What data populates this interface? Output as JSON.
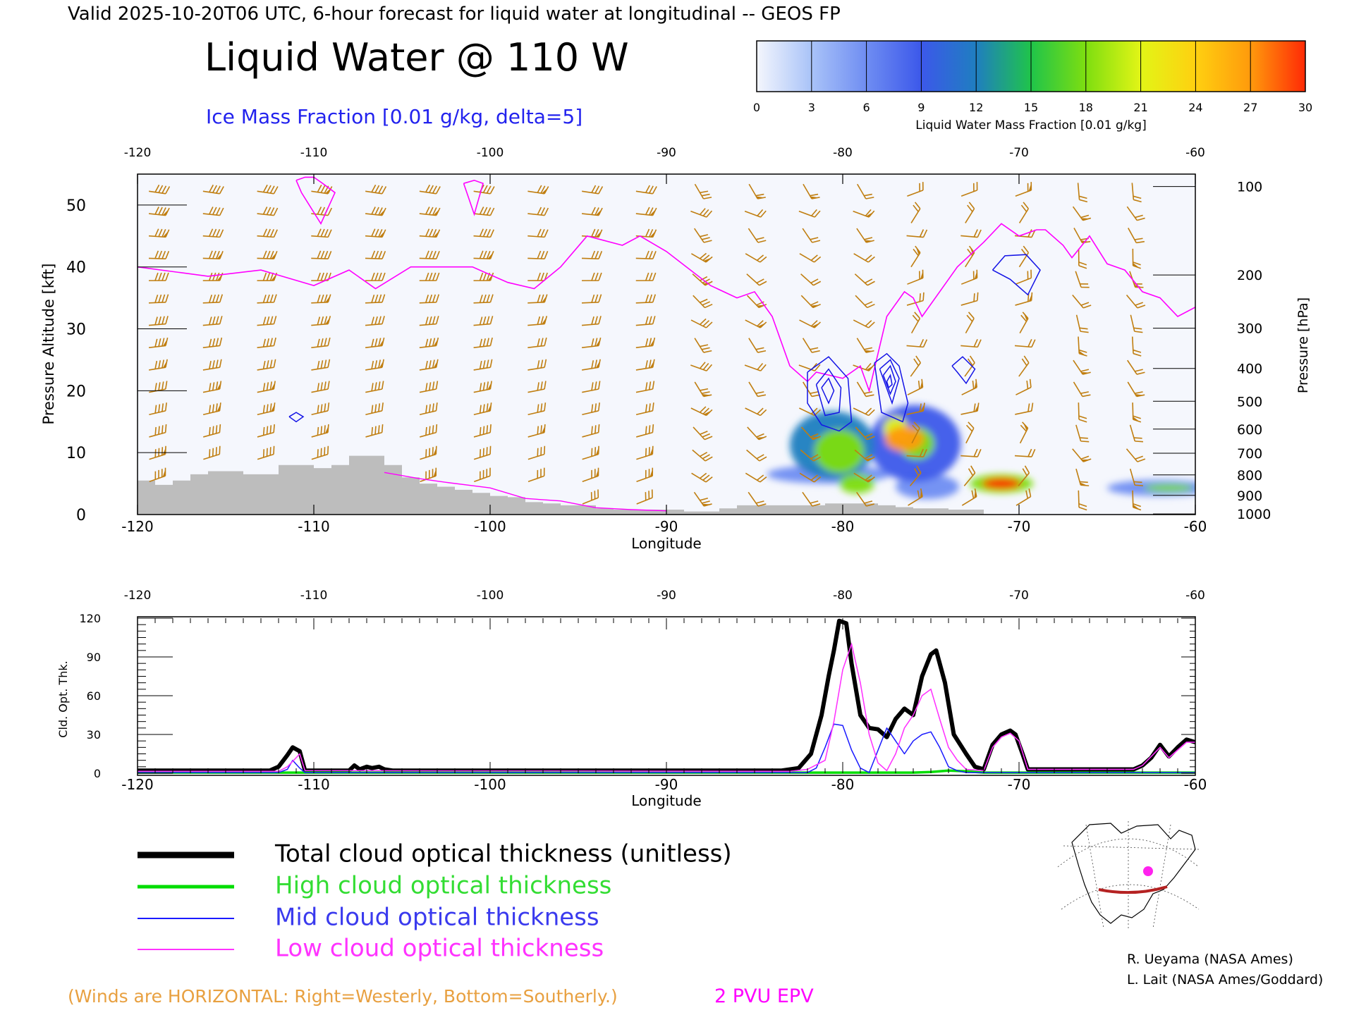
{
  "header": {
    "valid_line": "Valid 2025-10-20T06 UTC, 6-hour forecast for liquid water at longitudinal -- GEOS FP",
    "title": "Liquid Water @ 110 W",
    "ice_label": "Ice Mass Fraction [0.01 g/kg, delta=5]"
  },
  "colorbar": {
    "ticks": [
      "0",
      "3",
      "6",
      "9",
      "12",
      "15",
      "18",
      "21",
      "24",
      "27",
      "30"
    ],
    "label": "Liquid Water Mass Fraction [0.01 g/kg]",
    "colors": [
      "#f4f6fd",
      "#a9c3f8",
      "#6f8df2",
      "#3c58ea",
      "#1f7ec0",
      "#1fc44a",
      "#7ede10",
      "#e2f516",
      "#ffd010",
      "#ff9a0c",
      "#ff2a06"
    ]
  },
  "colors": {
    "wind_barb": "#c07e10",
    "epv": "#ff00ff",
    "ice": "#1414e6",
    "terrain": "#bdbdbd",
    "total": "#000000",
    "high": "#00dd00",
    "mid": "#1a1aff",
    "low": "#ff33ff"
  },
  "chart_data": [
    {
      "type": "cross-section",
      "xlabel": "Longitude",
      "ylabel_left": "Pressure Altitude [kft]",
      "ylabel_right": "Pressure [hPa]",
      "xlim": [
        -120,
        -60
      ],
      "ylim": [
        0,
        55
      ],
      "x_ticks": [
        -120,
        -110,
        -100,
        -90,
        -80,
        -70,
        -60
      ],
      "x_tick_labels": [
        "-120",
        "-110",
        "-100",
        "-90",
        "-80",
        "-70",
        "-60"
      ],
      "y_ticks": [
        0,
        10,
        20,
        30,
        40,
        50
      ],
      "y_tick_labels": [
        "0",
        "10",
        "20",
        "30",
        "40",
        "50"
      ],
      "pressure_ticks": [
        {
          "label": "100",
          "kft": 53.0
        },
        {
          "label": "200",
          "kft": 38.7
        },
        {
          "label": "300",
          "kft": 30.1
        },
        {
          "label": "400",
          "kft": 23.6
        },
        {
          "label": "500",
          "kft": 18.3
        },
        {
          "label": "600",
          "kft": 13.8
        },
        {
          "label": "700",
          "kft": 9.9
        },
        {
          "label": "800",
          "kft": 6.4
        },
        {
          "label": "900",
          "kft": 3.1
        },
        {
          "label": "1000",
          "kft": 0.1
        }
      ],
      "epv_2pvu": {
        "x": [
          -120,
          -116,
          -113,
          -110,
          -108,
          -106.5,
          -104.5,
          -101,
          -99,
          -97.5,
          -96,
          -94.5,
          -92.5,
          -91.5,
          -90,
          -87.5,
          -86,
          -85,
          -84,
          -83,
          -82,
          -81.5,
          -80,
          -79,
          -78.5,
          -77.5,
          -76.5,
          -76,
          -75.5,
          -74,
          -73.5,
          -72,
          -71,
          -70,
          -69,
          -68.5,
          -67.5,
          -67,
          -66,
          -65,
          -64,
          -63,
          -62,
          -61,
          -60
        ],
        "y": [
          40,
          38.5,
          39.5,
          37,
          39.5,
          36.5,
          40,
          40,
          37.5,
          36.5,
          40,
          45,
          43.5,
          45,
          42.5,
          37,
          35,
          36,
          32,
          24,
          21.5,
          23,
          22,
          24,
          20,
          32,
          36,
          35,
          32,
          38,
          40,
          44,
          47,
          45,
          46,
          46,
          43.5,
          41.5,
          45,
          40.5,
          39.5,
          36,
          35,
          32,
          33.5
        ]
      },
      "epv_lower": {
        "x": [
          -106,
          -104,
          -102.5,
          -100,
          -98,
          -96,
          -94,
          -92,
          -90
        ],
        "y": [
          6.8,
          5.8,
          5.2,
          4.3,
          2.6,
          2.2,
          1.1,
          0.8,
          0.6
        ]
      },
      "epv_blobs": [
        {
          "x": [
            -111,
            -110.5,
            -110,
            -109.5,
            -108.8,
            -109.6,
            -110.7,
            -111
          ],
          "y": [
            54,
            54.5,
            54.5,
            53.5,
            52,
            47,
            52,
            54
          ]
        },
        {
          "x": [
            -101.5,
            -100.9,
            -100.4,
            -100.9,
            -101.5
          ],
          "y": [
            53.5,
            54,
            53.5,
            48.5,
            53.5
          ]
        }
      ],
      "terrain": {
        "x": [
          -120,
          -119,
          -118,
          -117,
          -116,
          -115,
          -114,
          -113,
          -112,
          -111,
          -110,
          -109,
          -108,
          -107,
          -106,
          -105,
          -104,
          -103,
          -102,
          -101,
          -100,
          -99,
          -98,
          -97,
          -96,
          -95,
          -94,
          -93,
          -92,
          -91,
          -90,
          -89,
          -88,
          -87,
          -86,
          -85,
          -84,
          -83,
          -82,
          -81,
          -80,
          -79,
          -78,
          -77,
          -76,
          -75,
          -74,
          -73
        ],
        "elev_kft": [
          5.5,
          4.8,
          5.5,
          6.5,
          7,
          7,
          6.5,
          6.5,
          8,
          8,
          7.5,
          8,
          9.5,
          9.5,
          8,
          6,
          5,
          4.5,
          4,
          3.5,
          3,
          2.8,
          2,
          1.8,
          1.5,
          1.5,
          1,
          0.8,
          0.8,
          0.8,
          0.8,
          0.5,
          0.5,
          1,
          1.5,
          1.5,
          1.5,
          1.5,
          1.5,
          1.8,
          1.8,
          1.8,
          1.5,
          1.2,
          1,
          1,
          0.8,
          0.8
        ]
      },
      "ice_contours": [
        {
          "x": [
            -111.4,
            -111,
            -110.6,
            -111,
            -111.4
          ],
          "y": [
            15.8,
            16.5,
            15.8,
            15,
            15.8
          ]
        },
        {
          "x": [
            -82,
            -80.8,
            -79.7,
            -79.5,
            -80.2,
            -81.2,
            -82,
            -82
          ],
          "y": [
            23,
            25.5,
            22,
            15,
            13.5,
            14.5,
            18,
            23
          ]
        },
        {
          "x": [
            -81.5,
            -80.8,
            -80.1,
            -80.2,
            -81,
            -81.5
          ],
          "y": [
            21,
            23.5,
            20.5,
            16.5,
            16,
            21
          ]
        },
        {
          "x": [
            -81.2,
            -80.8,
            -80.5,
            -80.8,
            -81.2
          ],
          "y": [
            20.5,
            22,
            20,
            18,
            20.5
          ]
        },
        {
          "x": [
            -78.2,
            -77.5,
            -76.8,
            -76.3,
            -76.6,
            -77.8,
            -78.2
          ],
          "y": [
            24.5,
            26,
            24,
            18,
            15,
            16.5,
            24.5
          ]
        },
        {
          "x": [
            -77.9,
            -77.3,
            -76.8,
            -77.2,
            -77.9
          ],
          "y": [
            23.5,
            25,
            22,
            18,
            23.5
          ]
        },
        {
          "x": [
            -77.7,
            -77.3,
            -77,
            -77.3,
            -77.7
          ],
          "y": [
            22.5,
            24,
            21.5,
            19.5,
            22.5
          ]
        },
        {
          "x": [
            -77.5,
            -77.3,
            -77.2,
            -77.4,
            -77.5
          ],
          "y": [
            21.5,
            22.5,
            21,
            20.5,
            21.5
          ]
        },
        {
          "x": [
            -73.8,
            -73.2,
            -72.5,
            -73,
            -73.5,
            -73.8
          ],
          "y": [
            24,
            25.5,
            23.5,
            21.2,
            23,
            24
          ]
        },
        {
          "x": [
            -71.5,
            -70.8,
            -69.6,
            -68.8,
            -69.5,
            -70.5,
            -71.5
          ],
          "y": [
            39.5,
            41.8,
            42,
            39.5,
            35.5,
            38,
            39.5
          ]
        }
      ],
      "liquid_water": [
        {
          "lon": -80.2,
          "kft": 10.2,
          "value": 18,
          "rx": 1.4,
          "ry": 3.5
        },
        {
          "lon": -80.6,
          "kft": 11.2,
          "value": 13,
          "rx": 2.4,
          "ry": 5.5
        },
        {
          "lon": -79.2,
          "kft": 5.0,
          "value": 18,
          "rx": 1.0,
          "ry": 1.6
        },
        {
          "lon": -80.8,
          "kft": 6.5,
          "value": 6,
          "rx": 3.5,
          "ry": 1.5
        },
        {
          "lon": -76.5,
          "kft": 12.2,
          "value": 26,
          "rx": 1.1,
          "ry": 2.0
        },
        {
          "lon": -77.0,
          "kft": 13.8,
          "value": 20,
          "rx": 0.7,
          "ry": 2.0
        },
        {
          "lon": -75.8,
          "kft": 11.5,
          "value": 19,
          "rx": 1.0,
          "ry": 2.6
        },
        {
          "lon": -75.9,
          "kft": 11.5,
          "value": 10,
          "rx": 2.6,
          "ry": 6.2
        },
        {
          "lon": -75.2,
          "kft": 4.5,
          "value": 7,
          "rx": 1.8,
          "ry": 2.0
        },
        {
          "lon": -71.0,
          "kft": 5.0,
          "value": 29,
          "rx": 1.1,
          "ry": 0.9
        },
        {
          "lon": -71.0,
          "kft": 5.0,
          "value": 17,
          "rx": 1.8,
          "ry": 1.5
        },
        {
          "lon": -61.5,
          "kft": 4.3,
          "value": 19,
          "rx": 1.4,
          "ry": 0.6
        },
        {
          "lon": -62.0,
          "kft": 4.3,
          "value": 6,
          "rx": 3.0,
          "ry": 1.3
        }
      ]
    },
    {
      "type": "line",
      "xlabel": "Longitude",
      "ylabel": "Cld. Opt. Thk.",
      "xlim": [
        -120,
        -60
      ],
      "ylim": [
        0,
        120
      ],
      "x_ticks": [
        -120,
        -110,
        -100,
        -90,
        -80,
        -70,
        -60
      ],
      "x_tick_labels": [
        "-120",
        "-110",
        "-100",
        "-90",
        "-80",
        "-70",
        "-60"
      ],
      "y_ticks": [
        0,
        30,
        60,
        90,
        120
      ],
      "y_tick_labels": [
        "0",
        "30",
        "60",
        "90",
        "120"
      ],
      "series": [
        {
          "name": "Total cloud optical thickness (unitless)",
          "x": [
            -120,
            -112.5,
            -112,
            -111.5,
            -111.2,
            -110.8,
            -110.5,
            -108,
            -107.7,
            -107.4,
            -107,
            -106.7,
            -106.3,
            -106,
            -105.5,
            -90,
            -83.5,
            -82.5,
            -81.8,
            -81.2,
            -80.8,
            -80.5,
            -80.2,
            -79.8,
            -79.5,
            -79,
            -78.5,
            -78,
            -77.5,
            -77,
            -76.5,
            -76,
            -75.5,
            -75,
            -74.7,
            -74.2,
            -73.7,
            -73,
            -72.5,
            -72,
            -71.5,
            -71,
            -70.5,
            -70.2,
            -69.8,
            -69.5,
            -63.5,
            -63,
            -62.5,
            -62,
            -61.5,
            -61,
            -60.5,
            -60
          ],
          "y": [
            2,
            2,
            5,
            14,
            20,
            17,
            2,
            2,
            6,
            3,
            5,
            4,
            5,
            3,
            2,
            2,
            2,
            4,
            15,
            45,
            75,
            95,
            118,
            116,
            85,
            45,
            35,
            34,
            28,
            42,
            50,
            45,
            75,
            92,
            95,
            70,
            30,
            15,
            5,
            3,
            22,
            30,
            33,
            30,
            15,
            3,
            3,
            6,
            12,
            22,
            13,
            20,
            26,
            24
          ]
        },
        {
          "name": "High cloud optical thickness",
          "x": [
            -120,
            -86,
            -80,
            -78,
            -76,
            -75,
            -74,
            -73,
            -72,
            -60
          ],
          "y": [
            0.5,
            0.5,
            0.5,
            0.5,
            0.5,
            1,
            2,
            1.5,
            0.5,
            0.5
          ]
        },
        {
          "name": "Mid cloud optical thickness",
          "x": [
            -120,
            -112,
            -111.5,
            -111.2,
            -110.8,
            -110.5,
            -82,
            -81.5,
            -81,
            -80.5,
            -80,
            -79.5,
            -79,
            -78.5,
            -77.5,
            -76.5,
            -76,
            -75.5,
            -75,
            -74.5,
            -74,
            -73.5,
            -73,
            -60
          ],
          "y": [
            0.5,
            0.5,
            3,
            10,
            4,
            0.5,
            0.5,
            4,
            20,
            38,
            37,
            18,
            4,
            0.5,
            35,
            15,
            25,
            30,
            32,
            20,
            5,
            2,
            0.5,
            0.5
          ]
        },
        {
          "name": "Low cloud optical thickness",
          "x": [
            -120,
            -112,
            -111.5,
            -111,
            -110.8,
            -110.5,
            -83,
            -82,
            -81,
            -80.5,
            -80,
            -79.5,
            -79,
            -78.5,
            -78,
            -77.5,
            -77,
            -76.5,
            -76,
            -75.5,
            -75,
            -74.5,
            -74,
            -73.5,
            -73,
            -72,
            -71.5,
            -71,
            -70.5,
            -70,
            -69.5,
            -63.5,
            -63,
            -62,
            -61.5,
            -61,
            -60.5,
            -60
          ],
          "y": [
            1.5,
            1.5,
            5,
            12,
            15,
            2,
            1.5,
            3,
            10,
            40,
            80,
            100,
            70,
            30,
            8,
            2,
            15,
            35,
            45,
            60,
            65,
            42,
            20,
            10,
            3,
            2,
            20,
            28,
            31,
            25,
            3,
            3,
            6,
            20,
            12,
            18,
            24,
            24
          ]
        }
      ]
    }
  ],
  "legend": {
    "items": [
      {
        "label": "Total cloud optical thickness (unitless)"
      },
      {
        "label": "High cloud optical thickness"
      },
      {
        "label": "Mid cloud optical thickness"
      },
      {
        "label": "Low cloud optical thickness"
      }
    ]
  },
  "winds_note": "(Winds are HORIZONTAL: Right=Westerly, Bottom=Southerly.)",
  "epv_label": "2 PVU EPV",
  "credits": [
    "R. Ueyama (NASA Ames)",
    "L. Lait (NASA Ames/Goddard)"
  ]
}
